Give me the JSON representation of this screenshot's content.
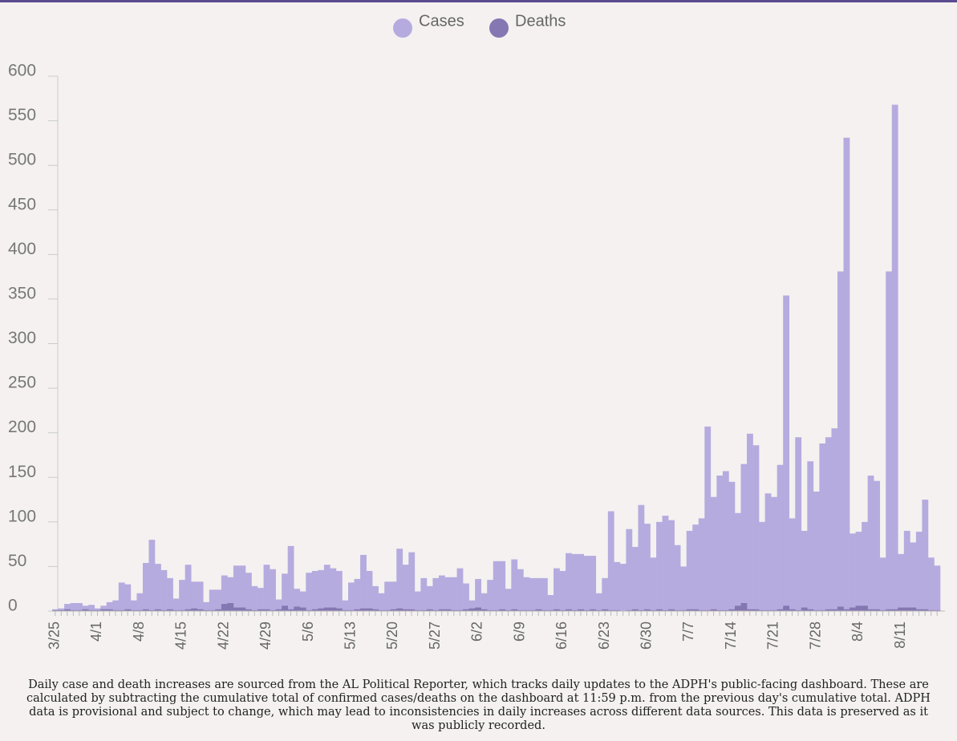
{
  "chart_data": {
    "type": "bar",
    "categories": [
      "3/25",
      null,
      null,
      null,
      null,
      null,
      null,
      "4/1",
      null,
      null,
      null,
      null,
      null,
      null,
      "4/8",
      null,
      null,
      null,
      null,
      null,
      null,
      "4/15",
      null,
      null,
      null,
      null,
      null,
      null,
      "4/22",
      null,
      null,
      null,
      null,
      null,
      null,
      "4/29",
      null,
      null,
      null,
      null,
      null,
      null,
      "5/6",
      null,
      null,
      null,
      null,
      null,
      null,
      "5/13",
      null,
      null,
      null,
      null,
      null,
      null,
      "5/20",
      null,
      null,
      null,
      null,
      null,
      null,
      "5/27",
      null,
      null,
      null,
      null,
      null,
      null,
      "6/2",
      null,
      null,
      null,
      null,
      null,
      null,
      "6/9",
      null,
      null,
      null,
      null,
      null,
      null,
      "6/16",
      null,
      null,
      null,
      null,
      null,
      null,
      "6/23",
      null,
      null,
      null,
      null,
      null,
      null,
      "6/30",
      null,
      null,
      null,
      null,
      null,
      null,
      "7/7",
      null,
      null,
      null,
      null,
      null,
      null,
      "7/14",
      null,
      null,
      null,
      null,
      null,
      null,
      "7/21",
      null,
      null,
      null,
      null,
      null,
      null,
      "7/28",
      null,
      null,
      null,
      null,
      null,
      null,
      "8/4",
      null,
      null,
      null,
      null,
      null,
      null,
      "8/11",
      null,
      null,
      null,
      null,
      null,
      null
    ],
    "series": [
      {
        "name": "Cases",
        "color": "#b6abdf",
        "values": [
          2,
          3,
          8,
          9,
          9,
          6,
          7,
          3,
          6,
          10,
          12,
          32,
          30,
          12,
          20,
          54,
          80,
          53,
          46,
          37,
          14,
          35,
          52,
          33,
          33,
          10,
          24,
          24,
          40,
          38,
          51,
          51,
          43,
          28,
          26,
          52,
          47,
          13,
          42,
          73,
          25,
          22,
          43,
          45,
          46,
          52,
          48,
          45,
          12,
          32,
          36,
          63,
          45,
          28,
          20,
          33,
          33,
          70,
          52,
          66,
          22,
          37,
          28,
          37,
          40,
          38,
          38,
          48,
          31,
          12,
          36,
          20,
          35,
          56,
          56,
          25,
          58,
          47,
          38,
          37,
          37,
          37,
          18,
          48,
          45,
          65,
          64,
          64,
          62,
          62,
          20,
          37,
          112,
          55,
          53,
          92,
          72,
          119,
          98,
          60,
          100,
          107,
          102,
          74,
          50,
          90,
          97,
          104,
          207,
          128,
          152,
          157,
          145,
          110,
          165,
          199,
          186,
          100,
          132,
          128,
          164,
          354,
          104,
          195,
          90,
          168,
          134,
          188,
          195,
          205,
          381,
          531,
          87,
          89,
          100,
          152,
          146,
          60,
          381,
          568,
          64,
          90,
          77,
          89,
          125,
          60,
          51
        ]
      },
      {
        "name": "Deaths",
        "color": "#8577b2",
        "values": [
          1,
          1,
          2,
          1,
          1,
          2,
          1,
          1,
          2,
          2,
          1,
          1,
          2,
          1,
          1,
          2,
          1,
          2,
          1,
          2,
          1,
          1,
          2,
          3,
          2,
          1,
          1,
          2,
          8,
          9,
          4,
          4,
          2,
          1,
          2,
          2,
          1,
          2,
          6,
          2,
          5,
          4,
          1,
          2,
          3,
          4,
          4,
          3,
          1,
          1,
          2,
          3,
          3,
          2,
          1,
          1,
          2,
          3,
          2,
          2,
          1,
          1,
          2,
          1,
          2,
          2,
          1,
          1,
          2,
          3,
          4,
          2,
          1,
          1,
          2,
          1,
          2,
          1,
          1,
          1,
          2,
          1,
          1,
          2,
          1,
          2,
          1,
          2,
          1,
          2,
          1,
          2,
          1,
          1,
          0,
          1,
          2,
          1,
          2,
          1,
          2,
          1,
          2,
          1,
          1,
          2,
          2,
          1,
          1,
          2,
          1,
          1,
          2,
          6,
          9,
          2,
          2,
          1,
          1,
          1,
          2,
          6,
          2,
          1,
          4,
          2,
          1,
          1,
          2,
          2,
          5,
          2,
          4,
          6,
          6,
          2,
          2,
          1,
          2,
          2,
          4,
          4,
          4,
          2,
          2,
          1,
          1
        ]
      }
    ],
    "ylim": [
      0,
      600
    ],
    "yticks": [
      0,
      50,
      100,
      150,
      200,
      250,
      300,
      350,
      400,
      450,
      500,
      550,
      600
    ],
    "legend": "top",
    "caption": "Daily case and death increases are sourced from the AL Political Reporter, which tracks daily updates to the ADPH's public-facing dashboard. These are calculated by subtracting the cumulative total of confirmed cases/deaths on the dashboard at 11:59 p.m. from the previous day's cumulative total. ADPH data is provisional and subject to change, which may lead to inconsistencies in daily increases across different data sources. This data is preserved as it was publicly recorded."
  }
}
